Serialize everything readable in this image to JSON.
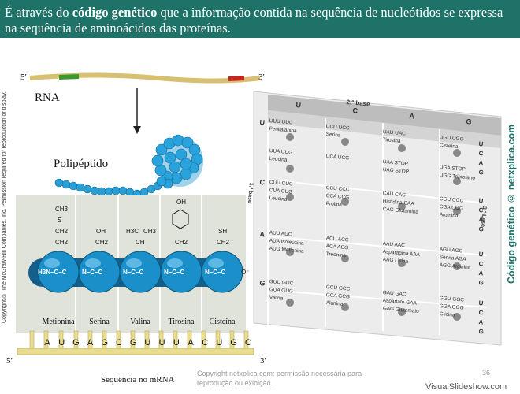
{
  "slide": {
    "title_pre": "É através do ",
    "title_bold": "código genético",
    "title_post": " que a informação contida na sequência de nucleótidos se expressa na sequência de aminoácidos das proteínas.",
    "page_number": "36"
  },
  "figure": {
    "rna_label": "RNA",
    "polypeptide_label": "Polipéptido",
    "five_prime": "5′",
    "three_prime": "3′",
    "sequence_label": "Sequência no mRNA",
    "amino_acids": [
      "Metionina",
      "Serina",
      "Valina",
      "Tirosina",
      "Cisteína"
    ],
    "codons": [
      "A",
      "U",
      "G",
      "A",
      "G",
      "C",
      "G",
      "U",
      "U",
      "U",
      "A",
      "C",
      "U",
      "G",
      "C"
    ],
    "side_groups": [
      "CH3 S CH2 CH2",
      "OH CH2",
      "H3C CH3 CH",
      "OH ring CH2",
      "SH CH2"
    ]
  },
  "codon_table": {
    "header_title": "2.ª base",
    "first_base_label": "1.ª base",
    "third_base_label": "3.ª base",
    "second_bases": [
      "U",
      "C",
      "A",
      "G"
    ],
    "first_bases": [
      "U",
      "C",
      "A",
      "G"
    ],
    "third_bases": [
      "U",
      "C",
      "A",
      "G"
    ],
    "rows": [
      [
        "UUU UUC Fenilalanina",
        "UCU UCC Serina",
        "UAU UAC Tirosina",
        "UGU UGC Cisteína"
      ],
      [
        "UUA UUG Leucina",
        "UCA UCG",
        "UAA STOP UAG STOP",
        "UGA STOP UGG Triptofano"
      ],
      [
        "CUU CUC CUA CUG Leucina",
        "CCU CCC CCA CCG Prolina",
        "CAU CAC Histidina CAA CAG Glutamina",
        "CGU CGC CGA CGG Arginina"
      ],
      [
        "AUU AUC AUA Isoleucina AUG Metionina",
        "ACU ACC ACA ACG Treonina",
        "AAU AAC Asparagina AAA AAG Lisina",
        "AGU AGC Serina AGA AGG Arginina"
      ],
      [
        "GUU GUC GUA GUG Valina",
        "GCU GCC GCA GCG Alanina",
        "GAU GAC Aspartato GAA GAG Glutamato",
        "GGU GGC GGA GGG Glicina"
      ]
    ]
  },
  "credits": {
    "copyright_side": "Copyright © The McGraw-Hill Companies, Inc. Permission required for reproduction or display.",
    "site_side": "Código genético © netxplica.com",
    "watermark": "Copyright netxplica.com: permissão necessária para reprodução ou exibição.",
    "brand": "VisualSlideshow.com"
  },
  "colors": {
    "title_bg": "#1f7268",
    "sphere": "#1a8fc9",
    "strand": "#e8d27a",
    "comb": "#e6d98a",
    "panel_bg": "#dde2d8",
    "table_bg": "#e2e2e2"
  }
}
